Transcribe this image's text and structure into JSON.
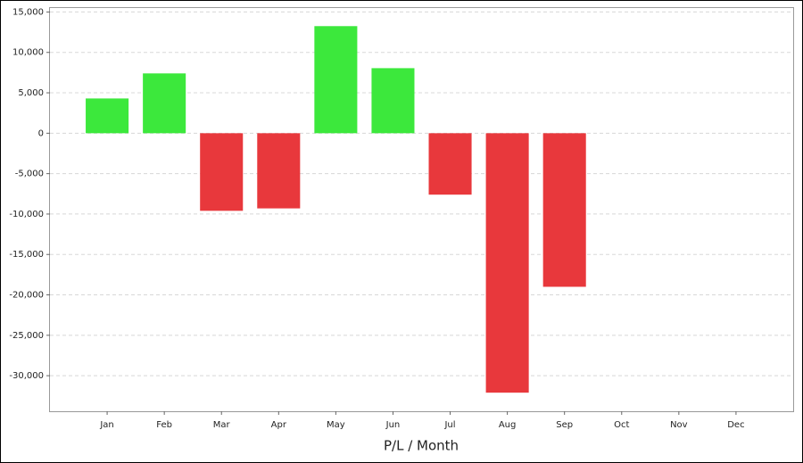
{
  "chart_data": {
    "type": "bar",
    "x_label": "P/L / Month",
    "categories": [
      "Jan",
      "Feb",
      "Mar",
      "Apr",
      "May",
      "Jun",
      "Jul",
      "Aug",
      "Sep",
      "Oct",
      "Nov",
      "Dec"
    ],
    "values": [
      4300,
      7400,
      -9600,
      -9300,
      13250,
      8050,
      -7600,
      -32100,
      -19000,
      null,
      null,
      null
    ],
    "positive_color": "#3ce83c",
    "negative_color": "#e8383c",
    "ylim": [
      -34400,
      15600
    ],
    "yticks": [
      {
        "value": -30000,
        "label": "-30,000"
      },
      {
        "value": -25000,
        "label": "-25,000"
      },
      {
        "value": -20000,
        "label": "-20,000"
      },
      {
        "value": -15000,
        "label": "-15,000"
      },
      {
        "value": -10000,
        "label": "-10,000"
      },
      {
        "value": -5000,
        "label": "-5,000"
      },
      0,
      {
        "value": 5000,
        "label": "5,000"
      },
      {
        "value": 10000,
        "label": "10,000"
      },
      {
        "value": 15000,
        "label": "15,000"
      }
    ],
    "grid": true
  }
}
